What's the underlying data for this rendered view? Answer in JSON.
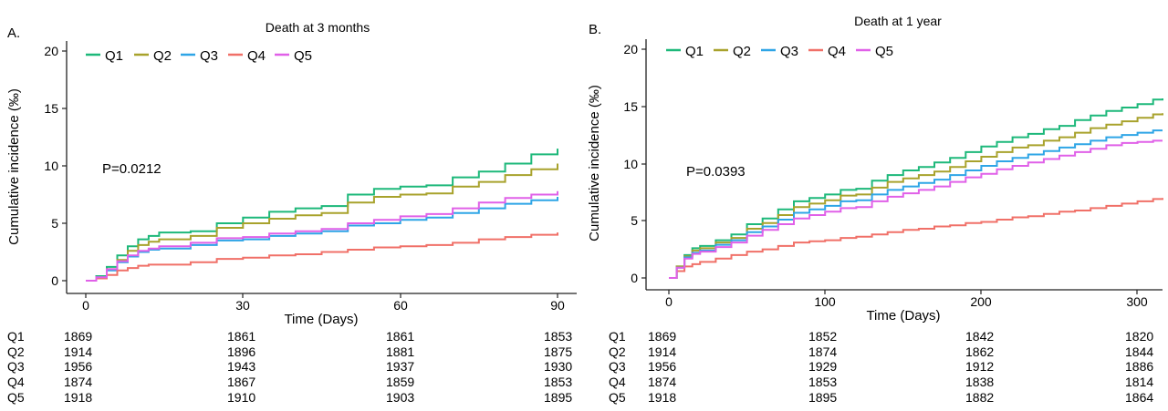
{
  "chart_data": [
    {
      "panel_label": "A.",
      "type": "line",
      "title": "Death at 3 months",
      "xlabel": "Time (Days)",
      "ylabel": "Cumulative incidence (‰)",
      "xlim": [
        0,
        90
      ],
      "ylim": [
        0,
        20
      ],
      "xticks": [
        "0",
        "30",
        "60",
        "90"
      ],
      "yticks": [
        "0",
        "5",
        "10",
        "15",
        "20"
      ],
      "annotation": "P=0.0212",
      "grid": false,
      "legend_position": "top-left",
      "step": true,
      "series": [
        {
          "name": "Q1",
          "color": "#1db87a",
          "x": [
            0,
            2,
            4,
            6,
            8,
            10,
            12,
            14,
            20,
            25,
            30,
            35,
            40,
            45,
            50,
            55,
            60,
            65,
            70,
            75,
            80,
            85,
            90
          ],
          "y": [
            0,
            0.4,
            1.2,
            2.2,
            3.0,
            3.6,
            3.9,
            4.2,
            4.3,
            5.0,
            5.5,
            6.0,
            6.3,
            6.5,
            7.5,
            8.0,
            8.2,
            8.3,
            9.0,
            9.5,
            10.2,
            11.0,
            11.5
          ]
        },
        {
          "name": "Q2",
          "color": "#a8a22c",
          "x": [
            0,
            2,
            4,
            6,
            8,
            10,
            12,
            14,
            20,
            25,
            30,
            35,
            40,
            45,
            50,
            55,
            60,
            65,
            70,
            75,
            80,
            85,
            90
          ],
          "y": [
            0,
            0.3,
            1.0,
            1.8,
            2.6,
            3.1,
            3.4,
            3.6,
            3.9,
            4.6,
            5.0,
            5.4,
            5.7,
            5.9,
            6.8,
            7.3,
            7.5,
            7.6,
            8.2,
            8.6,
            9.2,
            9.7,
            10.2
          ]
        },
        {
          "name": "Q3",
          "color": "#2ea5e6",
          "x": [
            0,
            2,
            4,
            6,
            8,
            10,
            12,
            14,
            20,
            25,
            30,
            35,
            40,
            45,
            50,
            55,
            60,
            65,
            70,
            75,
            80,
            85,
            90
          ],
          "y": [
            0,
            0.3,
            0.9,
            1.6,
            2.1,
            2.5,
            2.7,
            2.8,
            3.1,
            3.5,
            3.6,
            3.9,
            4.1,
            4.3,
            4.8,
            5.0,
            5.3,
            5.5,
            5.9,
            6.3,
            6.7,
            7.0,
            7.3
          ]
        },
        {
          "name": "Q4",
          "color": "#f07068",
          "x": [
            0,
            2,
            4,
            6,
            8,
            10,
            12,
            14,
            20,
            25,
            30,
            35,
            40,
            45,
            50,
            55,
            60,
            65,
            70,
            75,
            80,
            85,
            90
          ],
          "y": [
            0,
            0.2,
            0.5,
            0.9,
            1.1,
            1.3,
            1.4,
            1.4,
            1.6,
            1.9,
            2.0,
            2.2,
            2.3,
            2.5,
            2.7,
            2.9,
            3.0,
            3.1,
            3.3,
            3.6,
            3.8,
            4.0,
            4.2
          ]
        },
        {
          "name": "Q5",
          "color": "#e060e8",
          "x": [
            0,
            2,
            4,
            6,
            8,
            10,
            12,
            14,
            20,
            25,
            30,
            35,
            40,
            45,
            50,
            55,
            60,
            65,
            70,
            75,
            80,
            85,
            90
          ],
          "y": [
            0,
            0.3,
            1.0,
            1.7,
            2.2,
            2.6,
            2.8,
            3.0,
            3.3,
            3.7,
            3.8,
            4.1,
            4.3,
            4.5,
            5.0,
            5.3,
            5.6,
            5.8,
            6.3,
            6.8,
            7.2,
            7.5,
            7.8
          ]
        }
      ],
      "risk_table": {
        "times": [
          0,
          30,
          60,
          90
        ],
        "rows": [
          {
            "label": "Q1",
            "values": [
              "1869",
              "1861",
              "1861",
              "1853"
            ]
          },
          {
            "label": "Q2",
            "values": [
              "1914",
              "1896",
              "1881",
              "1875"
            ]
          },
          {
            "label": "Q3",
            "values": [
              "1956",
              "1943",
              "1937",
              "1930"
            ]
          },
          {
            "label": "Q4",
            "values": [
              "1874",
              "1867",
              "1859",
              "1853"
            ]
          },
          {
            "label": "Q5",
            "values": [
              "1918",
              "1910",
              "1903",
              "1895"
            ]
          }
        ]
      }
    },
    {
      "panel_label": "B.",
      "type": "line",
      "title": "Death at 1 year",
      "xlabel": "Time (Days)",
      "ylabel": "Cumulative incidence (‰)",
      "xlim": [
        0,
        316
      ],
      "ylim": [
        0,
        20
      ],
      "xticks": [
        "0",
        "100",
        "200",
        "300"
      ],
      "yticks": [
        "0",
        "5",
        "10",
        "15",
        "20"
      ],
      "annotation": "P=0.0393",
      "grid": false,
      "legend_position": "top-left",
      "step": true,
      "series": [
        {
          "name": "Q1",
          "color": "#1db87a",
          "x": [
            0,
            5,
            10,
            15,
            20,
            30,
            40,
            50,
            60,
            70,
            80,
            90,
            100,
            110,
            120,
            130,
            140,
            150,
            160,
            170,
            180,
            190,
            200,
            210,
            220,
            230,
            240,
            250,
            260,
            270,
            280,
            290,
            300,
            310,
            316
          ],
          "y": [
            0,
            1.0,
            2.0,
            2.6,
            2.8,
            3.3,
            3.8,
            4.7,
            5.2,
            6.0,
            6.7,
            7.0,
            7.3,
            7.7,
            7.8,
            8.5,
            9.0,
            9.4,
            9.7,
            10.1,
            10.5,
            11.0,
            11.5,
            11.9,
            12.3,
            12.6,
            13.0,
            13.3,
            13.8,
            14.2,
            14.6,
            14.9,
            15.2,
            15.6,
            15.7
          ]
        },
        {
          "name": "Q2",
          "color": "#a8a22c",
          "x": [
            0,
            5,
            10,
            15,
            20,
            30,
            40,
            50,
            60,
            70,
            80,
            90,
            100,
            110,
            120,
            130,
            140,
            150,
            160,
            170,
            180,
            190,
            200,
            210,
            220,
            230,
            240,
            250,
            260,
            270,
            280,
            290,
            300,
            310,
            316
          ],
          "y": [
            0,
            1.0,
            1.9,
            2.4,
            2.6,
            3.1,
            3.5,
            4.3,
            4.8,
            5.5,
            6.2,
            6.5,
            6.8,
            7.2,
            7.3,
            7.9,
            8.4,
            8.7,
            9.0,
            9.3,
            9.7,
            10.2,
            10.6,
            11.0,
            11.4,
            11.6,
            12.0,
            12.3,
            12.7,
            13.1,
            13.4,
            13.7,
            14.0,
            14.3,
            14.4
          ]
        },
        {
          "name": "Q3",
          "color": "#2ea5e6",
          "x": [
            0,
            5,
            10,
            15,
            20,
            30,
            40,
            50,
            60,
            70,
            80,
            90,
            100,
            110,
            120,
            130,
            140,
            150,
            160,
            170,
            180,
            190,
            200,
            210,
            220,
            230,
            240,
            250,
            260,
            270,
            280,
            290,
            300,
            310,
            316
          ],
          "y": [
            0,
            0.9,
            1.8,
            2.2,
            2.4,
            2.9,
            3.3,
            4.0,
            4.5,
            5.1,
            5.7,
            6.0,
            6.3,
            6.7,
            6.8,
            7.3,
            7.7,
            8.0,
            8.3,
            8.6,
            9.0,
            9.4,
            9.8,
            10.2,
            10.5,
            10.8,
            11.1,
            11.4,
            11.7,
            12.0,
            12.3,
            12.5,
            12.7,
            12.9,
            12.9
          ]
        },
        {
          "name": "Q4",
          "color": "#f07068",
          "x": [
            0,
            5,
            10,
            15,
            20,
            30,
            40,
            50,
            60,
            70,
            80,
            90,
            100,
            110,
            120,
            130,
            140,
            150,
            160,
            170,
            180,
            190,
            200,
            210,
            220,
            230,
            240,
            250,
            260,
            270,
            280,
            290,
            300,
            310,
            316
          ],
          "y": [
            0,
            0.6,
            1.0,
            1.2,
            1.4,
            1.7,
            2.0,
            2.3,
            2.5,
            2.8,
            3.1,
            3.2,
            3.3,
            3.5,
            3.6,
            3.8,
            4.0,
            4.2,
            4.3,
            4.5,
            4.6,
            4.8,
            4.9,
            5.1,
            5.3,
            5.4,
            5.6,
            5.8,
            5.9,
            6.1,
            6.3,
            6.5,
            6.7,
            6.9,
            7.0
          ]
        },
        {
          "name": "Q5",
          "color": "#e060e8",
          "x": [
            0,
            5,
            10,
            15,
            20,
            30,
            40,
            50,
            60,
            70,
            80,
            90,
            100,
            110,
            120,
            130,
            140,
            150,
            160,
            170,
            180,
            190,
            200,
            210,
            220,
            230,
            240,
            250,
            260,
            270,
            280,
            290,
            300,
            310,
            316
          ],
          "y": [
            0,
            0.9,
            1.7,
            2.1,
            2.3,
            2.7,
            3.1,
            3.7,
            4.2,
            4.7,
            5.2,
            5.5,
            5.8,
            6.1,
            6.2,
            6.7,
            7.1,
            7.4,
            7.7,
            8.0,
            8.4,
            8.8,
            9.1,
            9.5,
            9.8,
            10.1,
            10.4,
            10.7,
            11.0,
            11.3,
            11.6,
            11.8,
            11.9,
            12.0,
            12.0
          ]
        }
      ],
      "risk_table": {
        "times": [
          0,
          100,
          200,
          300
        ],
        "rows": [
          {
            "label": "Q1",
            "values": [
              "1869",
              "1852",
              "1842",
              "1820"
            ]
          },
          {
            "label": "Q2",
            "values": [
              "1914",
              "1874",
              "1862",
              "1844"
            ]
          },
          {
            "label": "Q3",
            "values": [
              "1956",
              "1929",
              "1912",
              "1886"
            ]
          },
          {
            "label": "Q4",
            "values": [
              "1874",
              "1853",
              "1838",
              "1814"
            ]
          },
          {
            "label": "Q5",
            "values": [
              "1918",
              "1895",
              "1882",
              "1864"
            ]
          }
        ]
      }
    }
  ]
}
